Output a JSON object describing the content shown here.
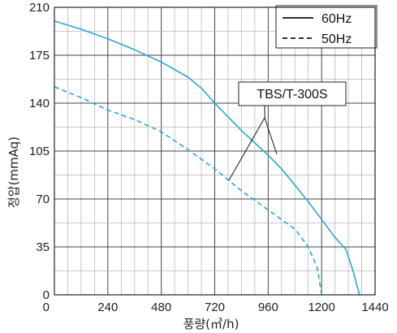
{
  "chart_data": {
    "type": "line",
    "xlabel": "풍량(㎥/h)",
    "ylabel": "정압(mmAq)",
    "xlim": [
      0,
      1440
    ],
    "ylim": [
      0,
      210
    ],
    "x_ticks": [
      "0",
      "240",
      "480",
      "720",
      "960",
      "1200",
      "1440"
    ],
    "y_ticks": [
      "0",
      "35",
      "70",
      "105",
      "140",
      "175",
      "210"
    ],
    "x_tick_values": [
      0,
      240,
      480,
      720,
      960,
      1200,
      1440
    ],
    "y_tick_values": [
      0,
      35,
      70,
      105,
      140,
      175,
      210
    ],
    "grid": true,
    "legend_position": "top-right",
    "annotation": "TBS/T-300S",
    "series": [
      {
        "name": "60Hz",
        "style": "solid",
        "color": "#2aa6d6",
        "x": [
          0,
          120,
          240,
          360,
          480,
          600,
          660,
          720,
          780,
          840,
          900,
          960,
          1020,
          1080,
          1140,
          1200,
          1260,
          1310,
          1340,
          1370
        ],
        "y": [
          200,
          194,
          187,
          179,
          170,
          159,
          151,
          140,
          130,
          120,
          111,
          102,
          92,
          80,
          68,
          55,
          42,
          33,
          18,
          0
        ]
      },
      {
        "name": "50Hz",
        "style": "dashed",
        "color": "#2aa6d6",
        "x": [
          0,
          120,
          240,
          360,
          480,
          600,
          720,
          840,
          960,
          1080,
          1140,
          1180,
          1200
        ],
        "y": [
          152,
          144,
          135,
          128,
          119,
          106,
          92,
          76,
          62,
          48,
          35,
          20,
          0
        ]
      }
    ]
  },
  "legend": {
    "items": [
      {
        "label": "60Hz",
        "style": "solid"
      },
      {
        "label": "50Hz",
        "style": "dashed"
      }
    ]
  }
}
